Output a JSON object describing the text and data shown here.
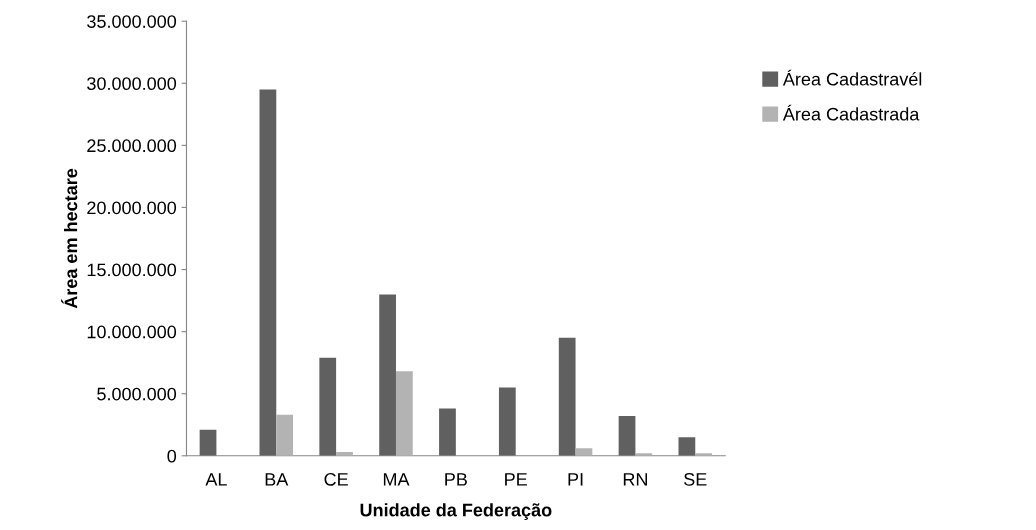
{
  "chart_data": {
    "type": "bar",
    "xlabel": "Unidade da Federação",
    "ylabel": "Área em hectare",
    "categories": [
      "AL",
      "BA",
      "CE",
      "MA",
      "PB",
      "PE",
      "PI",
      "RN",
      "SE"
    ],
    "series": [
      {
        "name": "Área Cadastravél",
        "color": "#606060",
        "values": [
          2100000,
          29500000,
          7900000,
          13000000,
          3800000,
          5500000,
          9500000,
          3200000,
          1500000
        ]
      },
      {
        "name": "Área Cadastrada",
        "color": "#b3b3b3",
        "values": [
          0,
          3300000,
          300000,
          6800000,
          0,
          0,
          600000,
          200000,
          200000
        ]
      }
    ],
    "ylim": [
      0,
      35000000
    ],
    "yticks": [
      {
        "value": 0,
        "label": "0"
      },
      {
        "value": 5000000,
        "label": "5.000.000"
      },
      {
        "value": 10000000,
        "label": "10.000.000"
      },
      {
        "value": 15000000,
        "label": "15.000.000"
      },
      {
        "value": 20000000,
        "label": "20.000.000"
      },
      {
        "value": 25000000,
        "label": "25.000.000"
      },
      {
        "value": 30000000,
        "label": "30.000.000"
      },
      {
        "value": 35000000,
        "label": "35.000.000"
      }
    ],
    "grid": false,
    "legend": "right"
  }
}
